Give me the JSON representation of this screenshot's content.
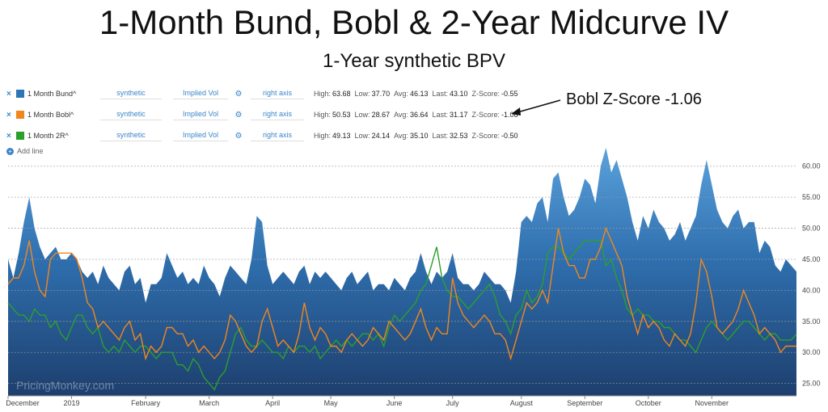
{
  "title": "1-Month Bund, Bobl & 2-Year Midcurve IV",
  "subtitle": "1-Year synthetic BPV",
  "annotation": "Bobl Z-Score -1.06",
  "watermark": "PricingMonkey.com",
  "add_line_label": "Add line",
  "legend": [
    {
      "name": "1 Month Bund^",
      "color": "#2e75b6",
      "mode": "synthetic",
      "measure": "Implied Vol",
      "axis": "right axis",
      "high_label": "High:",
      "high": "63.68",
      "low_label": "Low:",
      "low": "37.70",
      "avg_label": "Avg:",
      "avg": "46.13",
      "last_label": "Last:",
      "last": "43.10",
      "z_label": "Z-Score:",
      "z": "-0.55"
    },
    {
      "name": "1 Month Bobl^",
      "color": "#f0871e",
      "mode": "synthetic",
      "measure": "Implied Vol",
      "axis": "right axis",
      "high_label": "High:",
      "high": "50.53",
      "low_label": "Low:",
      "low": "28.67",
      "avg_label": "Avg:",
      "avg": "36.64",
      "last_label": "Last:",
      "last": "31.17",
      "z_label": "Z-Score:",
      "z": "-1.06"
    },
    {
      "name": "1 Month 2R^",
      "color": "#2ca02c",
      "mode": "synthetic",
      "measure": "Implied Vol",
      "axis": "right axis",
      "high_label": "High:",
      "high": "49.13",
      "low_label": "Low:",
      "low": "24.14",
      "avg_label": "Avg:",
      "avg": "35.10",
      "last_label": "Last:",
      "last": "32.53",
      "z_label": "Z-Score:",
      "z": "-0.50"
    }
  ],
  "chart_data": {
    "type": "area",
    "x_axis_labels": [
      "December",
      "2019",
      "February",
      "March",
      "April",
      "May",
      "June",
      "July",
      "August",
      "September",
      "October",
      "November"
    ],
    "x_axis_label_t": [
      0,
      12,
      26,
      38,
      50,
      61,
      73,
      84,
      97,
      109,
      121,
      133
    ],
    "y_ticks": [
      "25.00",
      "30.00",
      "35.00",
      "40.00",
      "45.00",
      "50.00",
      "55.00",
      "60.00"
    ],
    "ylim": [
      23,
      64
    ],
    "grid": true,
    "xlabel": "",
    "ylabel": "",
    "series": [
      {
        "name": "1 Month Bund^",
        "style": "area",
        "values": [
          45,
          42,
          46,
          51,
          55,
          50,
          47,
          45,
          46,
          47,
          45,
          45,
          46,
          45,
          43,
          42,
          43,
          41,
          44,
          42,
          41,
          40,
          43,
          44,
          41,
          42,
          38,
          41,
          41,
          42,
          46,
          44,
          42,
          43,
          41,
          42,
          41,
          44,
          42,
          41,
          39,
          42,
          44,
          43,
          42,
          41,
          45,
          52,
          51,
          44,
          41,
          42,
          43,
          42,
          41,
          43,
          44,
          41,
          43,
          42,
          43,
          42,
          41,
          40,
          42,
          43,
          41,
          42,
          43,
          40,
          41,
          41,
          40,
          42,
          41,
          40,
          42,
          43,
          46,
          43,
          41,
          43,
          42,
          43,
          46,
          42,
          41,
          41,
          40,
          41,
          43,
          42,
          41,
          41,
          40,
          38,
          43,
          51,
          52,
          51,
          54,
          55,
          51,
          58,
          59,
          55,
          52,
          53,
          55,
          58,
          57,
          54,
          60,
          63,
          59,
          61,
          58,
          55,
          51,
          48,
          52,
          50,
          53,
          51,
          50,
          48,
          49,
          51,
          48,
          50,
          52,
          57,
          61,
          57,
          53,
          51,
          50,
          52,
          53,
          50,
          51,
          51,
          46,
          48,
          47,
          44,
          43,
          45,
          44,
          43
        ]
      },
      {
        "name": "1 Month Bobl^",
        "style": "line",
        "values": [
          41,
          42,
          42,
          44,
          48,
          43,
          40,
          39,
          45,
          46,
          46,
          46,
          46,
          45,
          42,
          38,
          37,
          34,
          35,
          34,
          33,
          32,
          34,
          35,
          32,
          33,
          29,
          31,
          30,
          31,
          34,
          34,
          33,
          33,
          31,
          32,
          30,
          31,
          30,
          29,
          30,
          32,
          36,
          35,
          33,
          31,
          30,
          31,
          35,
          37,
          34,
          31,
          32,
          31,
          30,
          33,
          38,
          34,
          32,
          34,
          33,
          31,
          31,
          30,
          32,
          33,
          32,
          31,
          32,
          34,
          33,
          32,
          35,
          34,
          33,
          32,
          33,
          35,
          37,
          34,
          32,
          34,
          33,
          33,
          42,
          38,
          36,
          35,
          34,
          35,
          36,
          35,
          33,
          33,
          32,
          29,
          32,
          35,
          38,
          37,
          38,
          40,
          38,
          44,
          50,
          46,
          44,
          44,
          42,
          42,
          45,
          45,
          47,
          50,
          48,
          46,
          44,
          39,
          36,
          33,
          36,
          34,
          35,
          34,
          32,
          31,
          33,
          32,
          31,
          33,
          38,
          45,
          43,
          39,
          34,
          33,
          34,
          35,
          37,
          40,
          38,
          36,
          33,
          34,
          33,
          32,
          30,
          31,
          31,
          31
        ]
      },
      {
        "name": "1 Month 2R^",
        "style": "line",
        "values": [
          38,
          37,
          36,
          36,
          35,
          37,
          36,
          36,
          34,
          35,
          33,
          32,
          34,
          36,
          36,
          34,
          33,
          34,
          31,
          30,
          31,
          30,
          32,
          31,
          30,
          31,
          31,
          30,
          29,
          30,
          30,
          30,
          28,
          28,
          27,
          29,
          28,
          26,
          25,
          24,
          26,
          27,
          30,
          33,
          34,
          32,
          31,
          31,
          32,
          31,
          30,
          30,
          29,
          31,
          30,
          31,
          31,
          30,
          31,
          29,
          30,
          31,
          32,
          31,
          32,
          31,
          32,
          33,
          33,
          32,
          33,
          31,
          34,
          36,
          35,
          36,
          37,
          38,
          40,
          41,
          44,
          47,
          42,
          40,
          39,
          39,
          38,
          37,
          38,
          39,
          40,
          41,
          39,
          36,
          35,
          33,
          36,
          37,
          40,
          38,
          39,
          41,
          46,
          47,
          47,
          46,
          45,
          46,
          47,
          48,
          48,
          48,
          48,
          44,
          45,
          42,
          40,
          37,
          36,
          37,
          36,
          36,
          35,
          35,
          34,
          34,
          33,
          32,
          32,
          31,
          30,
          32,
          34,
          35,
          34,
          33,
          32,
          33,
          34,
          35,
          35,
          34,
          33,
          32,
          33,
          33,
          32,
          32,
          32,
          33
        ]
      }
    ]
  }
}
